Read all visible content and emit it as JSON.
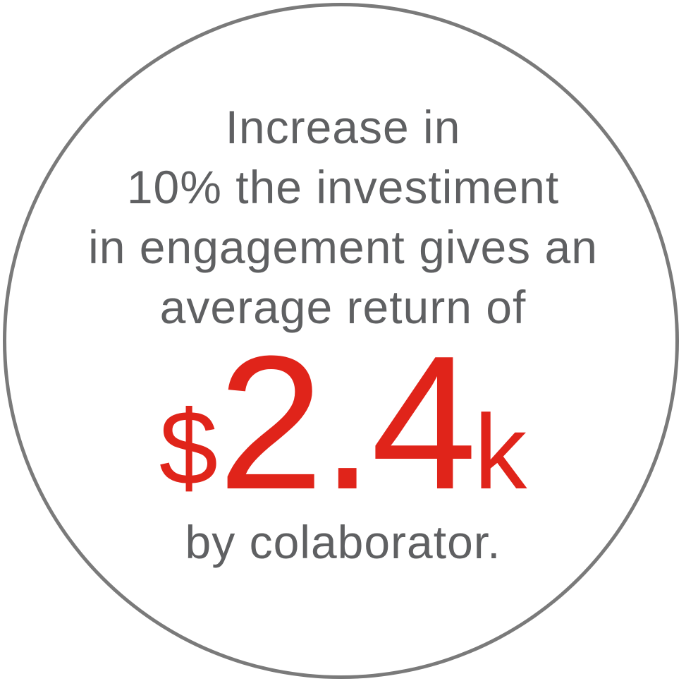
{
  "badge": {
    "line1": "Increase in",
    "line2": "10% the investiment",
    "line3": "in engagement gives an",
    "line4": "average return of",
    "amount_currency": "$",
    "amount_value": "2.4",
    "amount_unit": "k",
    "line6": "by colaborator.",
    "colors": {
      "ring": "#7a7a7a",
      "text": "#5f6062",
      "accent": "#e0241a",
      "background": "#ffffff"
    }
  }
}
